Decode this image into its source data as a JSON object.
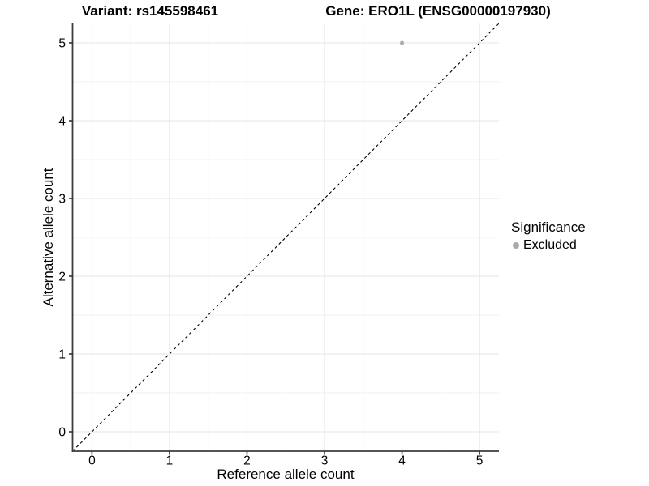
{
  "header": {
    "variant_title": "Variant: rs145598461",
    "gene_title": "Gene: ERO1L (ENSG00000197930)"
  },
  "legend": {
    "title": "Significance",
    "entries": [
      {
        "label": "Excluded",
        "color": "#aaaaaa"
      }
    ]
  },
  "chart_data": {
    "type": "scatter",
    "title": "",
    "xlabel": "Reference allele count",
    "ylabel": "Alternative allele count",
    "xlim": [
      -0.25,
      5.25
    ],
    "ylim": [
      -0.25,
      5.25
    ],
    "xticks": [
      0,
      1,
      2,
      3,
      4,
      5
    ],
    "yticks": [
      0,
      1,
      2,
      3,
      4,
      5
    ],
    "grid": true,
    "legend_position": "right",
    "series": [
      {
        "name": "Excluded",
        "color": "#afafaf",
        "points": [
          {
            "x": 4,
            "y": 5
          }
        ]
      }
    ],
    "reference_line": {
      "type": "identity",
      "style": "dashed",
      "color": "#000000",
      "from": -0.25,
      "to": 5.25
    },
    "style_colors": {
      "grid_major": "#e5e5e5",
      "grid_minor": "#f2f2f2",
      "axis_line": "#3c3c3c",
      "tick_mark": "#333333"
    }
  }
}
